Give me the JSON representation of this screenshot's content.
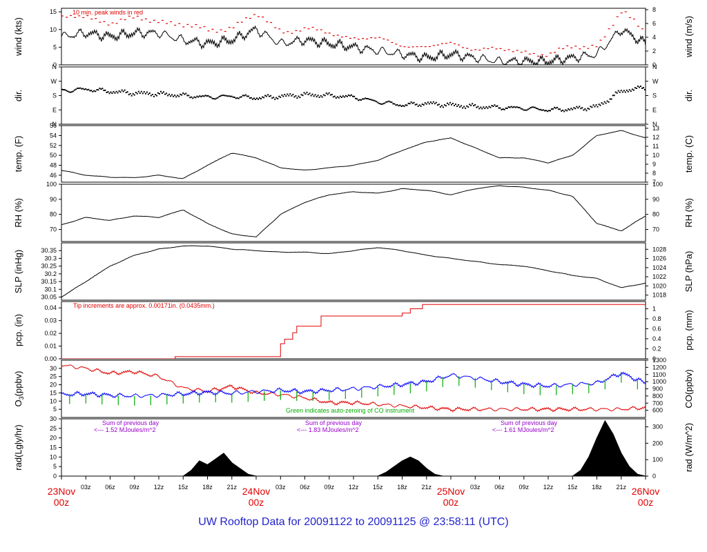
{
  "footer": {
    "title": "UW Rooftop Data for 20091122  to  20091125 @ 23:58:11  (UTC)"
  },
  "colors": {
    "black": "#000000",
    "red": "#e00000",
    "blue": "#0000ff",
    "green": "#00aa00",
    "purple": "#9900cc",
    "footer": "#2222cc"
  },
  "chart_data": [
    {
      "type": "line",
      "panel": "wind",
      "ylabel_left": "wind (kts)",
      "ylabel_right": "wind (m/s)",
      "ylim": [
        0,
        16
      ],
      "yticks_left": [
        0,
        5,
        10,
        15
      ],
      "ylim_right": [
        0,
        8.2
      ],
      "yticks_right": [
        0,
        2,
        4,
        6,
        8
      ],
      "annotation": "10 min. peak winds in red",
      "series": [
        {
          "role": "speed",
          "color": "black",
          "x": [
            0,
            3,
            6,
            9,
            12,
            15,
            18,
            21,
            24,
            27,
            30,
            33,
            36,
            39,
            42,
            45,
            48,
            51,
            54,
            57,
            60,
            63,
            66,
            69,
            72
          ],
          "values": [
            8,
            9,
            8,
            9,
            9,
            7,
            6,
            7,
            10,
            6,
            7,
            6,
            5,
            4,
            3,
            2,
            3,
            2,
            1,
            1,
            1,
            2,
            3,
            10,
            6
          ]
        },
        {
          "role": "peak",
          "color": "red",
          "x": [
            0,
            3,
            6,
            9,
            12,
            15,
            18,
            21,
            24,
            27,
            30,
            33,
            36,
            39,
            42,
            45,
            48,
            51,
            54,
            57,
            60,
            63,
            66,
            69,
            72
          ],
          "values": [
            13,
            14,
            12,
            13,
            13,
            11,
            10,
            11,
            14,
            10,
            10,
            9,
            8,
            7,
            6,
            5,
            6,
            5,
            4,
            4,
            3,
            5,
            6,
            15,
            9
          ]
        }
      ]
    },
    {
      "type": "scatter",
      "panel": "direction",
      "ylabel_left": "dir.",
      "ylabel_right": "dir.",
      "ylim": [
        0,
        360
      ],
      "yticks_left_labels": [
        "N",
        "E",
        "S",
        "W",
        "N"
      ],
      "yticks_left_values": [
        0,
        90,
        180,
        270,
        360
      ],
      "series": [
        {
          "color": "black",
          "x": [
            0,
            3,
            6,
            9,
            12,
            15,
            18,
            21,
            24,
            27,
            30,
            33,
            36,
            39,
            42,
            45,
            48,
            51,
            54,
            57,
            60,
            63,
            66,
            69,
            72
          ],
          "values": [
            210,
            220,
            205,
            195,
            190,
            180,
            170,
            175,
            165,
            175,
            185,
            180,
            170,
            140,
            120,
            130,
            120,
            110,
            105,
            100,
            90,
            95,
            110,
            210,
            230
          ]
        }
      ]
    },
    {
      "type": "line",
      "panel": "temperature",
      "ylabel_left": "temp. (F)",
      "ylabel_right": "temp. (C)",
      "ylim": [
        44.6,
        56
      ],
      "yticks_left": [
        46,
        48,
        50,
        52,
        54,
        56
      ],
      "ylim_right": [
        7,
        13.3
      ],
      "yticks_right": [
        7,
        8,
        9,
        10,
        11,
        12,
        13
      ],
      "series": [
        {
          "color": "black",
          "x": [
            0,
            3,
            6,
            9,
            12,
            15,
            18,
            21,
            24,
            27,
            30,
            33,
            36,
            39,
            42,
            45,
            48,
            51,
            54,
            57,
            60,
            63,
            66,
            69,
            72
          ],
          "values": [
            47,
            46,
            45.6,
            45.5,
            46,
            45.3,
            48,
            50.5,
            49.5,
            47.5,
            47,
            47.5,
            48,
            49,
            51,
            52.7,
            53.5,
            51.5,
            49.5,
            49.5,
            48.5,
            50,
            54,
            55,
            53.5
          ]
        }
      ]
    },
    {
      "type": "line",
      "panel": "humidity",
      "ylabel_left": "RH (%)",
      "ylabel_right": "RH (%)",
      "ylim": [
        62,
        100
      ],
      "yticks_left": [
        70,
        80,
        90,
        100
      ],
      "ylim_right": [
        62,
        100
      ],
      "yticks_right": [
        70,
        80,
        90,
        100
      ],
      "series": [
        {
          "color": "black",
          "x": [
            0,
            3,
            6,
            9,
            12,
            15,
            18,
            21,
            24,
            27,
            30,
            33,
            36,
            39,
            42,
            45,
            48,
            51,
            54,
            57,
            60,
            63,
            66,
            69,
            72
          ],
          "values": [
            73,
            78,
            76,
            79,
            78,
            83,
            74,
            67,
            65,
            80,
            88,
            93,
            95,
            94,
            97,
            96,
            93,
            97,
            99,
            98,
            96,
            92,
            74,
            69,
            79
          ]
        }
      ]
    },
    {
      "type": "line",
      "panel": "pressure",
      "ylabel_left": "SLP (inHg)",
      "ylabel_right": "SLP (hPa)",
      "ylim": [
        30.03,
        30.4
      ],
      "yticks_left": [
        30.05,
        30.1,
        30.15,
        30.2,
        30.25,
        30.3,
        30.35
      ],
      "ylim_right": [
        1016.9,
        1029.4
      ],
      "yticks_right": [
        1018,
        1020,
        1022,
        1024,
        1026,
        1028
      ],
      "series": [
        {
          "color": "black",
          "x": [
            0,
            3,
            6,
            9,
            12,
            15,
            18,
            21,
            24,
            27,
            30,
            33,
            36,
            39,
            42,
            45,
            48,
            51,
            54,
            57,
            60,
            63,
            66,
            69,
            72
          ],
          "values": [
            30.05,
            30.15,
            30.25,
            30.32,
            30.36,
            30.38,
            30.38,
            30.36,
            30.35,
            30.34,
            30.34,
            30.33,
            30.35,
            30.37,
            30.35,
            30.32,
            30.3,
            30.28,
            30.26,
            30.25,
            30.22,
            30.19,
            30.17,
            30.11,
            30.14
          ]
        }
      ]
    },
    {
      "type": "line",
      "panel": "precipitation",
      "ylabel_left": "pcp. (in)",
      "ylabel_right": "pcp. (mm)",
      "ylim": [
        0,
        0.045
      ],
      "yticks_left": [
        0,
        0.01,
        0.02,
        0.03,
        0.04
      ],
      "yticks_left_labels": [
        "0.00",
        "0.01",
        "0.02",
        "0.03",
        "0.04"
      ],
      "ylim_right": [
        0,
        1.143
      ],
      "yticks_right": [
        0,
        0.2,
        0.4,
        0.6,
        0.8,
        1
      ],
      "annotation": "Tip increments are approx. 0.00171in. (0.0435mm.)",
      "series": [
        {
          "color": "red",
          "step": true,
          "x": [
            0,
            13,
            14,
            27,
            27.5,
            28.5,
            29,
            32,
            42,
            43,
            44.5,
            72
          ],
          "values": [
            0,
            0,
            0.0017,
            0.0119,
            0.0154,
            0.0205,
            0.0256,
            0.0336,
            0.0359,
            0.0393,
            0.0427,
            0.0427
          ]
        }
      ]
    },
    {
      "type": "line",
      "panel": "ozone-co",
      "ylabel_left": "O3(ppbv)",
      "ylabel_right": "CO(ppbv)",
      "ylim": [
        0,
        35
      ],
      "yticks_left": [
        5,
        10,
        15,
        20,
        25,
        30
      ],
      "ylim_right": [
        500,
        1300
      ],
      "yticks_right": [
        600,
        700,
        800,
        900,
        1000,
        1100,
        1200,
        1300
      ],
      "annotation": "Green indicates auto-zeroing of CO instrument",
      "series": [
        {
          "role": "O3",
          "color": "red",
          "x": [
            0,
            3,
            6,
            9,
            12,
            15,
            18,
            21,
            24,
            27,
            30,
            33,
            36,
            39,
            42,
            45,
            48,
            51,
            54,
            57,
            60,
            63,
            66,
            69,
            72
          ],
          "values": [
            32,
            30,
            27,
            28,
            25,
            18,
            16,
            19,
            15,
            14,
            12,
            9,
            9,
            8,
            7,
            6,
            5,
            5,
            5,
            5,
            5,
            5,
            5,
            5,
            6
          ]
        },
        {
          "role": "CO",
          "color": "blue",
          "x": [
            0,
            3,
            6,
            9,
            12,
            15,
            18,
            21,
            24,
            27,
            30,
            33,
            36,
            39,
            42,
            45,
            48,
            51,
            54,
            57,
            60,
            63,
            66,
            69,
            72
          ],
          "values": [
            820,
            830,
            810,
            800,
            810,
            830,
            850,
            840,
            860,
            880,
            860,
            880,
            900,
            930,
            960,
            1000,
            1090,
            1050,
            1000,
            960,
            940,
            960,
            980,
            1120,
            980
          ]
        }
      ]
    },
    {
      "type": "area",
      "panel": "radiation",
      "ylabel_left": "rad(Lgly/hr)",
      "ylabel_right": "rad (W/m^2)",
      "ylim": [
        0,
        30
      ],
      "yticks_left": [
        0,
        5,
        10,
        15,
        20,
        25,
        30
      ],
      "ylim_right": [
        0,
        348.8
      ],
      "yticks_right": [
        0,
        100,
        200,
        300
      ],
      "annotations": [
        {
          "line1": "Sum of previous day",
          "line2": "<--- 1.52 MJoules/m^2"
        },
        {
          "line1": "Sum of previous day",
          "line2": "<--- 1.83 MJoules/m^2"
        },
        {
          "line1": "Sum of previous day",
          "line2": "<--- 1.61 MJoules/m^2"
        }
      ],
      "series": [
        {
          "color": "black",
          "x": [
            15,
            16,
            17,
            18,
            19,
            20,
            21,
            22,
            23,
            24,
            39,
            40,
            41,
            42,
            43,
            44,
            45,
            46,
            47,
            48,
            63,
            64,
            65,
            66,
            67,
            68,
            69,
            70,
            71,
            72
          ],
          "values": [
            0,
            3,
            8,
            6,
            9,
            12,
            7,
            4,
            1,
            0,
            0,
            2,
            5,
            8,
            10,
            8,
            4,
            1,
            0,
            0,
            0,
            3,
            10,
            20,
            29,
            22,
            12,
            5,
            1,
            0
          ]
        }
      ]
    }
  ],
  "x_axis": {
    "range_hours": [
      0,
      72
    ],
    "hour_labels": [
      "03z",
      "06z",
      "09z",
      "12z",
      "15z",
      "18z",
      "21z"
    ],
    "dates": [
      {
        "line1": "23Nov",
        "line2": "00z",
        "hour": 0
      },
      {
        "line1": "24Nov",
        "line2": "00z",
        "hour": 24
      },
      {
        "line1": "25Nov",
        "line2": "00z",
        "hour": 48
      },
      {
        "line1": "26Nov",
        "line2": "00z",
        "hour": 72
      }
    ]
  }
}
